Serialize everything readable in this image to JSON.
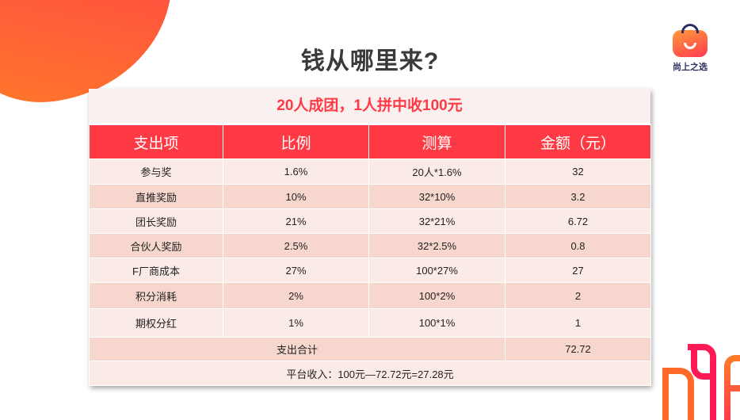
{
  "page": {
    "title": "钱从哪里来?"
  },
  "logo": {
    "name": "尚上之选"
  },
  "table": {
    "caption": "20人成团，1人拼中收100元",
    "headers": [
      "支出项",
      "比例",
      "测算",
      "金额（元）"
    ],
    "rows": [
      [
        "参与奖",
        "1.6%",
        "20人*1.6%",
        "32"
      ],
      [
        "直推奖励",
        "10%",
        "32*10%",
        "3.2"
      ],
      [
        "团长奖励",
        "21%",
        "32*21%",
        "6.72"
      ],
      [
        "合伙人奖励",
        "2.5%",
        "32*2.5%",
        "0.8"
      ],
      [
        "F厂商成本",
        "27%",
        "100*27%",
        "27"
      ],
      [
        "积分消耗",
        "2%",
        "100*2%",
        "2"
      ],
      [
        "期权分红",
        "1%",
        "100*1%",
        "1"
      ]
    ],
    "total_label": "支出合计",
    "total_value": "72.72",
    "income": "平台收入：100元—72.72元=27.28元"
  },
  "colors": {
    "accent": "#ff3a44",
    "row_light": "#fbebe7",
    "row_dark": "#f7d7cd"
  }
}
